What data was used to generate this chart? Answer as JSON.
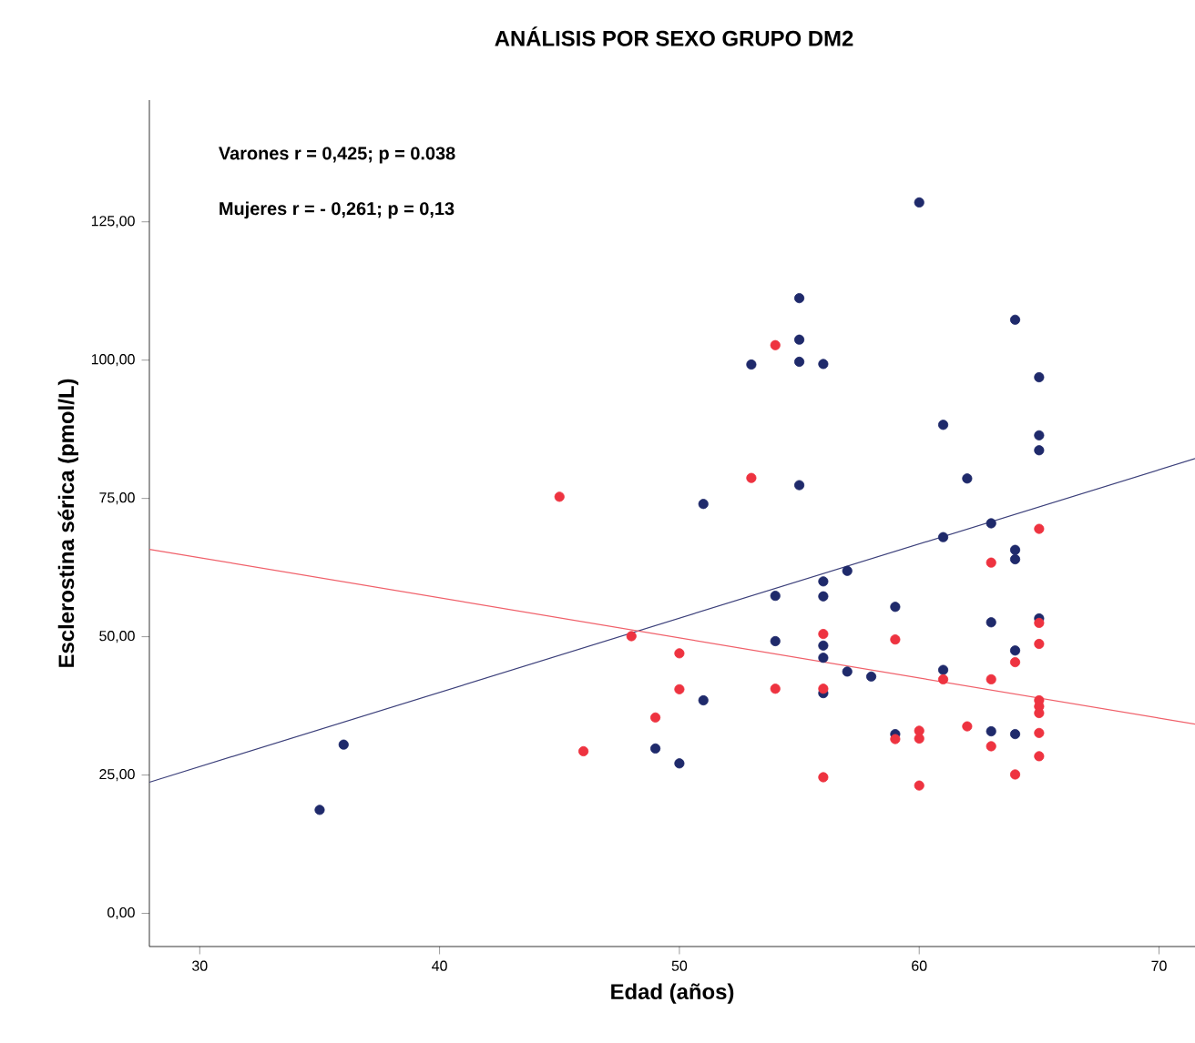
{
  "chart_data": {
    "type": "scatter",
    "title": "ANÁLISIS POR SEXO GRUPO DM2",
    "xlabel": "Edad (años)",
    "ylabel": "Esclerostina sérica (pmol/L)",
    "annotations": [
      "Varones r = 0,425; p = 0.038",
      "Mujeres r = - 0,261; p = 0,13"
    ],
    "xlim": [
      27.9,
      71.5
    ],
    "xticks": [
      30,
      40,
      50,
      60,
      70
    ],
    "ylim": [
      -6,
      147
    ],
    "yticks": [
      {
        "value": 0,
        "label": "0,00"
      },
      {
        "value": 25,
        "label": "25,00"
      },
      {
        "value": 50,
        "label": "50,00"
      },
      {
        "value": 75,
        "label": "75,00"
      },
      {
        "value": 100,
        "label": "100,00"
      },
      {
        "value": 125,
        "label": "125,00"
      }
    ],
    "legend": false,
    "grid": false,
    "series": [
      {
        "marker": "circle",
        "color": "#1f2a6b",
        "x": [
          51,
          36,
          35,
          51,
          49,
          50,
          60,
          55,
          64,
          55,
          53,
          55,
          56,
          65,
          61,
          65,
          65,
          55,
          62,
          63,
          61,
          64,
          64,
          57,
          56,
          54,
          56,
          59,
          63,
          65,
          54,
          56,
          64,
          56,
          57,
          61,
          58,
          56,
          59,
          63,
          64
        ],
        "values": [
          74.0,
          30.5,
          18.7,
          38.5,
          29.8,
          27.1,
          128.5,
          111.2,
          107.3,
          103.7,
          99.2,
          99.7,
          99.3,
          96.9,
          88.3,
          86.4,
          83.7,
          77.4,
          78.6,
          70.5,
          68.0,
          65.7,
          64.0,
          61.9,
          60.0,
          57.4,
          57.3,
          55.4,
          52.6,
          53.3,
          49.2,
          48.4,
          47.5,
          46.2,
          43.7,
          44.0,
          42.8,
          39.8,
          32.4,
          32.9,
          32.4
        ]
      },
      {
        "marker": "circle",
        "color": "#ee3340",
        "x": [
          45,
          48,
          50,
          50,
          49,
          46,
          54,
          53,
          65,
          63,
          65,
          56,
          59,
          65,
          64,
          61,
          63,
          56,
          54,
          65,
          65,
          65,
          59,
          60,
          60,
          62,
          63,
          65,
          65,
          56,
          64,
          60
        ],
        "values": [
          75.3,
          50.1,
          47.0,
          40.5,
          35.4,
          29.3,
          102.7,
          78.7,
          69.5,
          63.4,
          52.5,
          50.5,
          49.5,
          48.7,
          45.4,
          42.3,
          42.3,
          40.6,
          40.6,
          38.5,
          37.4,
          36.2,
          31.5,
          33.0,
          31.6,
          33.8,
          30.2,
          32.6,
          28.4,
          24.6,
          25.1,
          23.1
        ]
      },
      {
        "type": "line",
        "marker": "none",
        "color": "#3b3f7a",
        "x": [
          27.9,
          71.5
        ],
        "values": [
          23.7,
          82.2
        ]
      },
      {
        "type": "line",
        "marker": "none",
        "color": "#f0606a",
        "x": [
          27.9,
          71.5
        ],
        "values": [
          65.8,
          34.2
        ]
      }
    ]
  }
}
